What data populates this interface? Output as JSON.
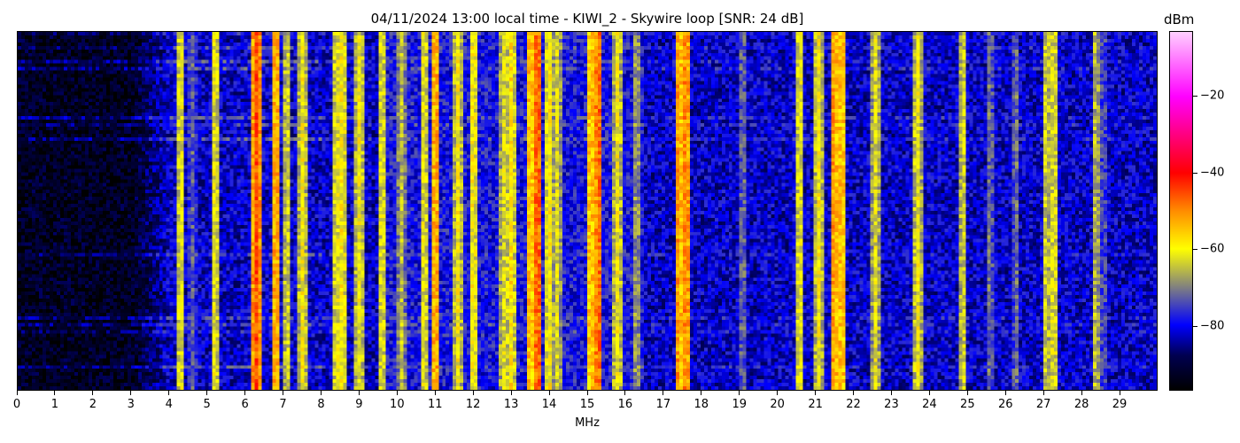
{
  "chart_data": {
    "type": "heatmap",
    "title": "04/11/2024 13:00 local time - KIWI_2 - Skywire loop [SNR: 24 dB]",
    "xlabel": "MHz",
    "xlim": [
      0,
      30
    ],
    "xticks": [
      "0",
      "1",
      "2",
      "3",
      "4",
      "5",
      "6",
      "7",
      "8",
      "9",
      "10",
      "11",
      "12",
      "13",
      "14",
      "15",
      "16",
      "17",
      "18",
      "19",
      "20",
      "21",
      "22",
      "23",
      "24",
      "25",
      "26",
      "27",
      "28",
      "29"
    ],
    "colorbar": {
      "label": "dBm",
      "range": [
        -97,
        -3
      ],
      "ticks": [
        "−20",
        "−40",
        "−60",
        "−80"
      ],
      "tick_values": [
        -20,
        -40,
        -60,
        -80
      ],
      "colormap": [
        [
          -97,
          "#000000"
        ],
        [
          -88,
          "#000050"
        ],
        [
          -80,
          "#0000ff"
        ],
        [
          -70,
          "#808080"
        ],
        [
          -60,
          "#ffff00"
        ],
        [
          -50,
          "#ff8c00"
        ],
        [
          -40,
          "#ff0000"
        ],
        [
          -30,
          "#ff0080"
        ],
        [
          -20,
          "#ff00ff"
        ],
        [
          -3,
          "#ffd0ff"
        ]
      ]
    },
    "noise_floor_dBm": {
      "below_3MHz": -93,
      "above_4MHz": -82
    },
    "signals": [
      {
        "mhz": 4.3,
        "dbm": -60
      },
      {
        "mhz": 4.6,
        "dbm": -72
      },
      {
        "mhz": 5.2,
        "dbm": -60
      },
      {
        "mhz": 6.3,
        "dbm": -45
      },
      {
        "mhz": 6.8,
        "dbm": -50
      },
      {
        "mhz": 7.1,
        "dbm": -62
      },
      {
        "mhz": 7.5,
        "dbm": -60
      },
      {
        "mhz": 8.4,
        "dbm": -60
      },
      {
        "mhz": 8.55,
        "dbm": -58
      },
      {
        "mhz": 9.0,
        "dbm": -60
      },
      {
        "mhz": 9.6,
        "dbm": -60
      },
      {
        "mhz": 10.1,
        "dbm": -65
      },
      {
        "mhz": 10.7,
        "dbm": -60
      },
      {
        "mhz": 11.0,
        "dbm": -50
      },
      {
        "mhz": 11.6,
        "dbm": -60
      },
      {
        "mhz": 12.0,
        "dbm": -58
      },
      {
        "mhz": 12.8,
        "dbm": -62
      },
      {
        "mhz": 13.0,
        "dbm": -58
      },
      {
        "mhz": 13.5,
        "dbm": -52
      },
      {
        "mhz": 13.7,
        "dbm": -45
      },
      {
        "mhz": 14.0,
        "dbm": -58
      },
      {
        "mhz": 14.2,
        "dbm": -62
      },
      {
        "mhz": 15.1,
        "dbm": -52
      },
      {
        "mhz": 15.3,
        "dbm": -46
      },
      {
        "mhz": 15.8,
        "dbm": -60
      },
      {
        "mhz": 16.3,
        "dbm": -66
      },
      {
        "mhz": 17.4,
        "dbm": -50
      },
      {
        "mhz": 17.6,
        "dbm": -48
      },
      {
        "mhz": 19.1,
        "dbm": -70
      },
      {
        "mhz": 20.6,
        "dbm": -60
      },
      {
        "mhz": 21.1,
        "dbm": -60
      },
      {
        "mhz": 21.5,
        "dbm": -50
      },
      {
        "mhz": 21.7,
        "dbm": -52
      },
      {
        "mhz": 22.6,
        "dbm": -62
      },
      {
        "mhz": 23.7,
        "dbm": -60
      },
      {
        "mhz": 24.9,
        "dbm": -62
      },
      {
        "mhz": 25.6,
        "dbm": -70
      },
      {
        "mhz": 26.3,
        "dbm": -70
      },
      {
        "mhz": 27.1,
        "dbm": -62
      },
      {
        "mhz": 27.3,
        "dbm": -60
      },
      {
        "mhz": 28.4,
        "dbm": -64
      },
      {
        "mhz": 28.6,
        "dbm": -72
      }
    ]
  }
}
